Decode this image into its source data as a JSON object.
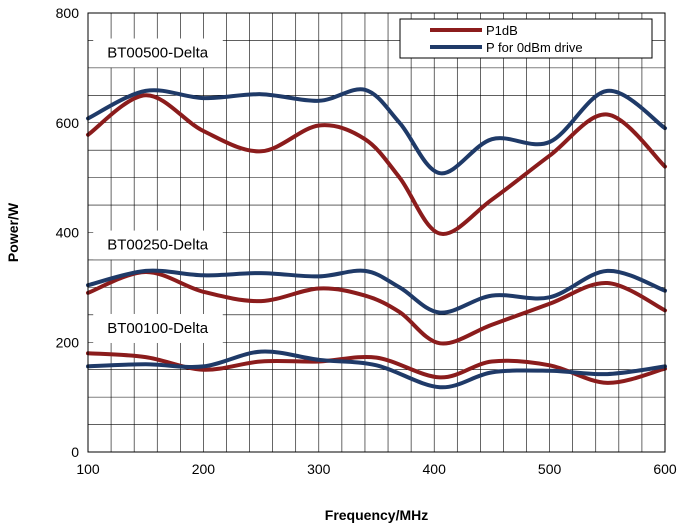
{
  "chart_data": {
    "type": "line",
    "title": "",
    "xlabel": "Frequency/MHz",
    "ylabel": "Power/W",
    "xlim": [
      100,
      600
    ],
    "ylim": [
      0,
      800
    ],
    "x_ticks": [
      100,
      200,
      300,
      400,
      500,
      600
    ],
    "y_ticks": [
      0,
      200,
      400,
      600,
      800
    ],
    "grid": true,
    "legend_position": "top-right",
    "legend": [
      {
        "name": "P1dB",
        "color": "#8b1c1c"
      },
      {
        "name": "P for 0dBm drive",
        "color": "#1f3a68"
      }
    ],
    "annotations": [
      {
        "text": "BT00500-Delta",
        "x": 108,
        "y": 728
      },
      {
        "text": "BT00250-Delta",
        "x": 108,
        "y": 378
      },
      {
        "text": "BT00100-Delta",
        "x": 108,
        "y": 226
      }
    ],
    "groups": [
      {
        "name": "BT00500-Delta",
        "series": [
          {
            "legend": "P1dB",
            "color": "#8b1c1c",
            "points": [
              [
                100,
                578
              ],
              [
                150,
                650
              ],
              [
                200,
                585
              ],
              [
                250,
                548
              ],
              [
                300,
                595
              ],
              [
                340,
                570
              ],
              [
                370,
                500
              ],
              [
                405,
                398
              ],
              [
                450,
                460
              ],
              [
                500,
                540
              ],
              [
                550,
                615
              ],
              [
                600,
                520
              ]
            ]
          },
          {
            "legend": "P for 0dBm drive",
            "color": "#1f3a68",
            "points": [
              [
                100,
                608
              ],
              [
                150,
                658
              ],
              [
                200,
                645
              ],
              [
                250,
                652
              ],
              [
                300,
                640
              ],
              [
                340,
                660
              ],
              [
                370,
                600
              ],
              [
                405,
                508
              ],
              [
                450,
                570
              ],
              [
                500,
                565
              ],
              [
                550,
                658
              ],
              [
                600,
                590
              ]
            ]
          }
        ]
      },
      {
        "name": "BT00250-Delta",
        "series": [
          {
            "legend": "P1dB",
            "color": "#8b1c1c",
            "points": [
              [
                100,
                290
              ],
              [
                150,
                328
              ],
              [
                200,
                292
              ],
              [
                250,
                275
              ],
              [
                300,
                298
              ],
              [
                340,
                285
              ],
              [
                370,
                255
              ],
              [
                405,
                198
              ],
              [
                450,
                232
              ],
              [
                500,
                270
              ],
              [
                550,
                308
              ],
              [
                600,
                258
              ]
            ]
          },
          {
            "legend": "P for 0dBm drive",
            "color": "#1f3a68",
            "points": [
              [
                100,
                304
              ],
              [
                150,
                330
              ],
              [
                200,
                322
              ],
              [
                250,
                326
              ],
              [
                300,
                320
              ],
              [
                340,
                330
              ],
              [
                370,
                300
              ],
              [
                405,
                254
              ],
              [
                450,
                285
              ],
              [
                500,
                282
              ],
              [
                550,
                330
              ],
              [
                600,
                294
              ]
            ]
          }
        ]
      },
      {
        "name": "BT00100-Delta",
        "series": [
          {
            "legend": "P1dB",
            "color": "#8b1c1c",
            "points": [
              [
                100,
                180
              ],
              [
                150,
                173
              ],
              [
                200,
                150
              ],
              [
                250,
                165
              ],
              [
                300,
                165
              ],
              [
                350,
                172
              ],
              [
                405,
                136
              ],
              [
                450,
                165
              ],
              [
                500,
                158
              ],
              [
                550,
                126
              ],
              [
                600,
                152
              ]
            ]
          },
          {
            "legend": "P for 0dBm drive",
            "color": "#1f3a68",
            "points": [
              [
                100,
                156
              ],
              [
                150,
                160
              ],
              [
                200,
                156
              ],
              [
                250,
                183
              ],
              [
                300,
                168
              ],
              [
                350,
                158
              ],
              [
                405,
                118
              ],
              [
                450,
                145
              ],
              [
                500,
                148
              ],
              [
                550,
                142
              ],
              [
                600,
                156
              ]
            ]
          }
        ]
      }
    ]
  }
}
